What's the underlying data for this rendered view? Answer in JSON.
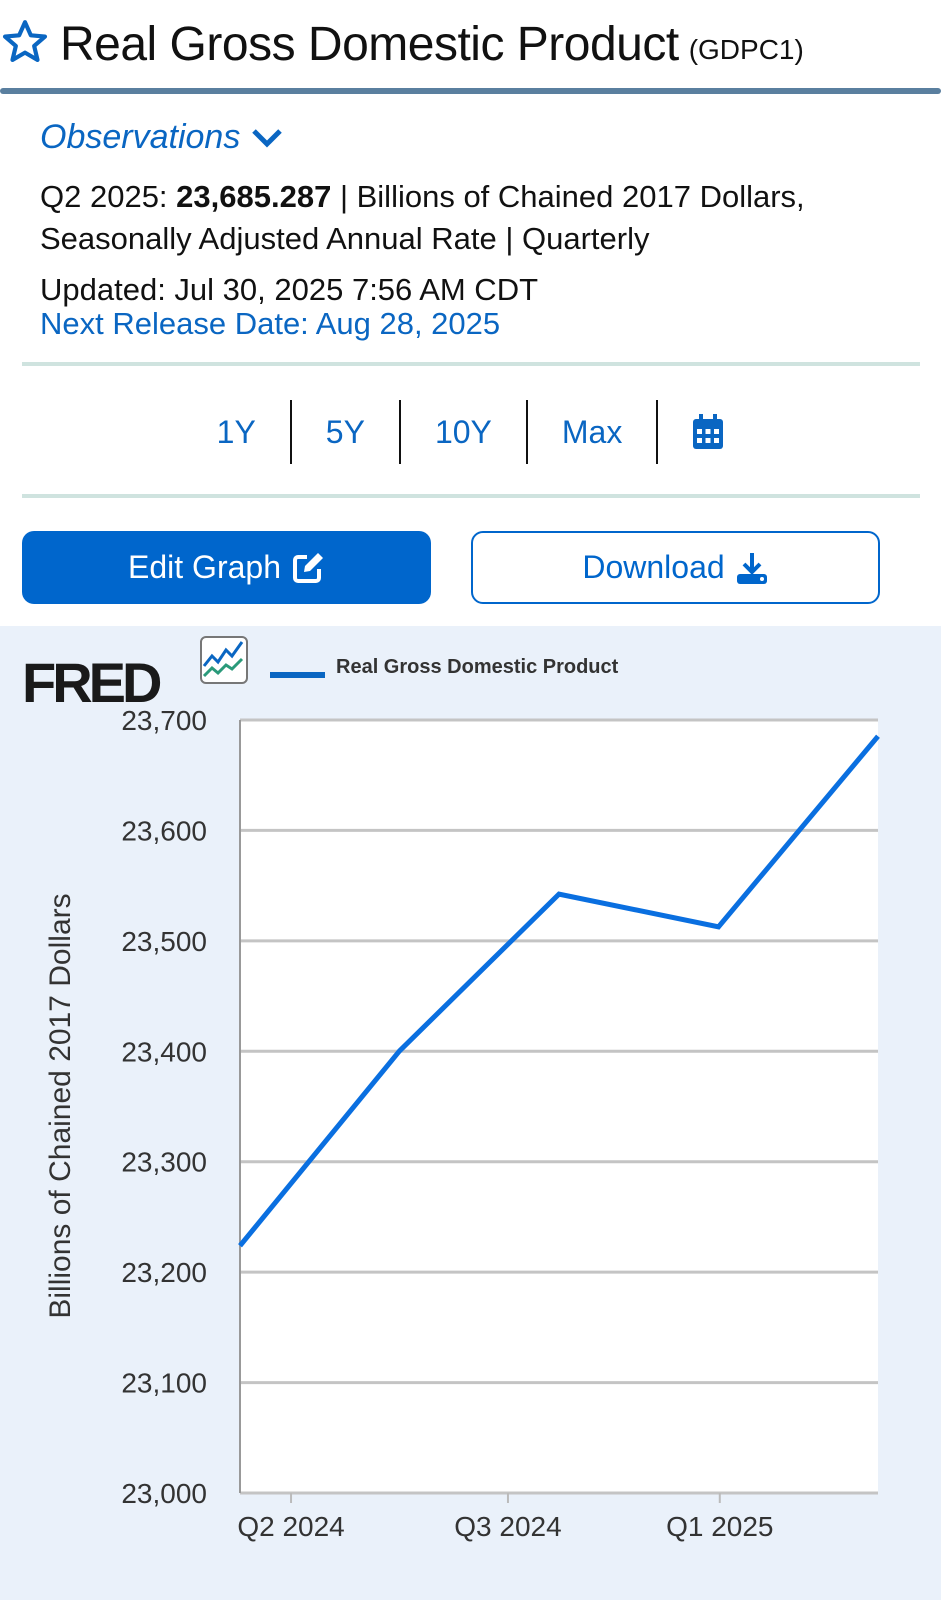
{
  "header": {
    "title": "Real Gross Domestic Product",
    "series_id": "(GDPC1)",
    "favorite_icon": "star-outline-icon"
  },
  "observations": {
    "toggle_label": "Observations",
    "period": "Q2 2025:",
    "value": "23,685.287",
    "units_text": "| Billions of Chained 2017 Dollars, Seasonally Adjusted Annual Rate | Quarterly",
    "updated": "Updated: Jul 30, 2025 7:56 AM CDT",
    "next_release": "Next Release Date: Aug 28, 2025"
  },
  "range_buttons": [
    "1Y",
    "5Y",
    "10Y",
    "Max"
  ],
  "range_calendar_icon": "calendar-icon",
  "actions": {
    "edit_graph": "Edit Graph",
    "download": "Download"
  },
  "colors": {
    "accent": "#0066cc",
    "series": "#0a66c2",
    "chart_bg": "#eaf1fa"
  },
  "chart_data": {
    "type": "line",
    "logo": "FRED",
    "legend": "Real Gross Domestic Product",
    "ylabel": "Billions of Chained 2017 Dollars",
    "xlabel": "",
    "ylim": [
      23000,
      23700
    ],
    "yticks": [
      "23,000",
      "23,100",
      "23,200",
      "23,300",
      "23,400",
      "23,500",
      "23,600",
      "23,700"
    ],
    "xtick_labels": [
      "Q2 2024",
      "Q3 2024",
      "Q1 2025"
    ],
    "grid": "horizontal",
    "series": [
      {
        "name": "Real Gross Domestic Product",
        "x": [
          "2024-Q2",
          "2024-Q3",
          "2024-Q4",
          "2025-Q1",
          "2025-Q2"
        ],
        "values": [
          23223.9,
          23400.3,
          23542.3,
          23512.7,
          23685.3
        ]
      }
    ]
  }
}
